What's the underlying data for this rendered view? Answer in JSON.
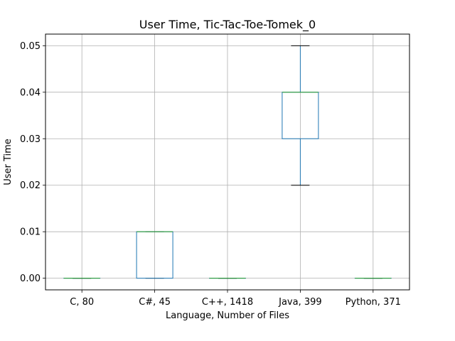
{
  "chart_data": {
    "type": "box",
    "title": "User Time, Tic-Tac-Toe-Tomek_0",
    "xlabel": "Language, Number of Files",
    "ylabel": "User Time",
    "categories": [
      "C, 80",
      "C#, 45",
      "C++, 1418",
      "Java, 399",
      "Python, 371"
    ],
    "boxes": [
      {
        "whisker_low": 0.0,
        "q1": 0.0,
        "median": 0.0,
        "q3": 0.0,
        "whisker_high": 0.0
      },
      {
        "whisker_low": 0.0,
        "q1": 0.0,
        "median": 0.01,
        "q3": 0.01,
        "whisker_high": 0.01
      },
      {
        "whisker_low": 0.0,
        "q1": 0.0,
        "median": 0.0,
        "q3": 0.0,
        "whisker_high": 0.0
      },
      {
        "whisker_low": 0.02,
        "q1": 0.03,
        "median": 0.04,
        "q3": 0.04,
        "whisker_high": 0.05
      },
      {
        "whisker_low": 0.0,
        "q1": 0.0,
        "median": 0.0,
        "q3": 0.0,
        "whisker_high": 0.0
      }
    ],
    "yticks": [
      0.0,
      0.01,
      0.02,
      0.03,
      0.04,
      0.05
    ],
    "ytick_labels": [
      "0.00",
      "0.01",
      "0.02",
      "0.03",
      "0.04",
      "0.05"
    ],
    "ylim": [
      -0.0025,
      0.0525
    ],
    "grid": true,
    "colors": {
      "box": "#1f77b4",
      "median": "#2ca02c",
      "whisker": "#000000",
      "grid": "#b0b0b0"
    }
  }
}
